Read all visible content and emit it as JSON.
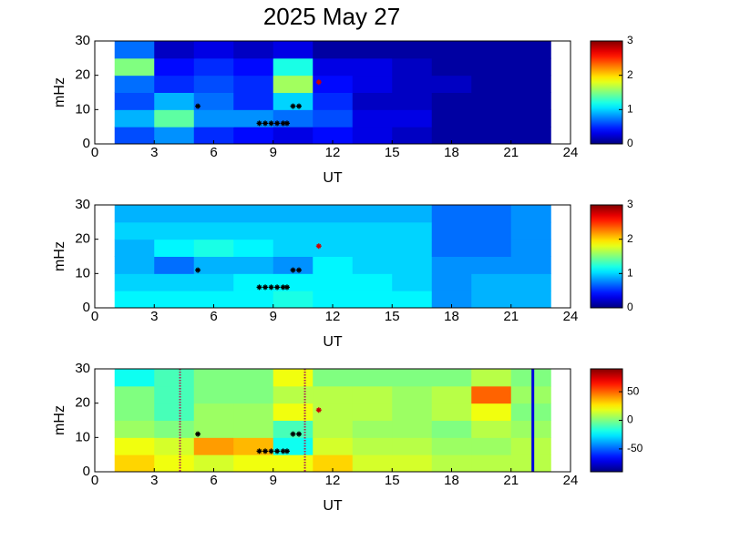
{
  "chart_data": [
    {
      "type": "heatmap",
      "title": "2025 May 27",
      "xlabel": "UT",
      "ylabel": "mHz",
      "xlim": [
        0,
        24
      ],
      "xticks": [
        0,
        3,
        6,
        9,
        12,
        15,
        18,
        21,
        24
      ],
      "ylim": [
        0,
        30
      ],
      "yticks": [
        0,
        10,
        20,
        30
      ],
      "x_bins": [
        1,
        3,
        5,
        7,
        9,
        11,
        13,
        15,
        17,
        19,
        21,
        23
      ],
      "y_bins": [
        0,
        5,
        10,
        15,
        20,
        25,
        30
      ],
      "values": [
        [
          0.6,
          0.8,
          0.5,
          0.4,
          0.3,
          0.4,
          0.3,
          0.2,
          0.1,
          0.1,
          0.1
        ],
        [
          0.9,
          1.4,
          0.8,
          0.8,
          0.7,
          0.6,
          0.3,
          0.3,
          0.1,
          0.1,
          0.1
        ],
        [
          0.6,
          0.9,
          0.7,
          0.5,
          1.0,
          0.5,
          0.2,
          0.2,
          0.1,
          0.1,
          0.1
        ],
        [
          0.7,
          0.5,
          0.6,
          0.5,
          1.6,
          0.4,
          0.3,
          0.2,
          0.2,
          0.1,
          0.1
        ],
        [
          1.5,
          0.4,
          0.5,
          0.4,
          1.2,
          0.3,
          0.3,
          0.2,
          0.1,
          0.1,
          0.1
        ],
        [
          0.7,
          0.2,
          0.3,
          0.2,
          0.3,
          0.1,
          0.1,
          0.1,
          0.1,
          0.1,
          0.1
        ]
      ],
      "clim": [
        0,
        3
      ],
      "cticks": [
        0,
        1,
        2,
        3
      ],
      "points": [
        {
          "color": "#000000",
          "x": [
            5.2,
            8.3,
            8.6,
            8.9,
            9.2,
            9.5,
            9.7,
            10.0,
            10.3
          ],
          "y": [
            11,
            6,
            6,
            6,
            6,
            6,
            6,
            11,
            11
          ]
        },
        {
          "color": "#cc0000",
          "x": [
            11.3
          ],
          "y": [
            18
          ]
        }
      ]
    },
    {
      "type": "heatmap",
      "xlabel": "UT",
      "ylabel": "mHz",
      "xlim": [
        0,
        24
      ],
      "xticks": [
        0,
        3,
        6,
        9,
        12,
        15,
        18,
        21,
        24
      ],
      "ylim": [
        0,
        30
      ],
      "yticks": [
        0,
        10,
        20,
        30
      ],
      "x_bins": [
        1,
        3,
        5,
        7,
        9,
        11,
        13,
        15,
        17,
        19,
        21,
        23
      ],
      "y_bins": [
        0,
        5,
        10,
        15,
        20,
        25,
        30
      ],
      "values": [
        [
          1.1,
          1.1,
          1.1,
          1.1,
          1.2,
          1.1,
          1.1,
          1.1,
          0.8,
          0.9,
          0.9
        ],
        [
          1.0,
          1.0,
          1.0,
          1.1,
          1.1,
          1.1,
          1.1,
          1.0,
          0.8,
          0.9,
          0.9
        ],
        [
          0.9,
          0.7,
          0.9,
          0.9,
          0.8,
          1.1,
          1.0,
          1.0,
          0.8,
          0.8,
          0.8
        ],
        [
          0.9,
          1.1,
          1.2,
          1.1,
          1.0,
          1.0,
          1.0,
          1.0,
          0.7,
          0.7,
          0.8
        ],
        [
          1.0,
          1.0,
          1.0,
          1.0,
          1.0,
          1.0,
          1.0,
          1.0,
          0.7,
          0.7,
          0.8
        ],
        [
          0.9,
          0.9,
          0.9,
          0.9,
          0.9,
          0.9,
          0.9,
          0.9,
          0.7,
          0.7,
          0.8
        ]
      ],
      "clim": [
        0,
        3
      ],
      "cticks": [
        0,
        1,
        2,
        3
      ],
      "points": [
        {
          "color": "#000000",
          "x": [
            5.2,
            8.3,
            8.6,
            8.9,
            9.2,
            9.5,
            9.7,
            10.0,
            10.3
          ],
          "y": [
            11,
            6,
            6,
            6,
            6,
            6,
            6,
            11,
            11
          ]
        },
        {
          "color": "#cc0000",
          "x": [
            11.3
          ],
          "y": [
            18
          ]
        }
      ]
    },
    {
      "type": "heatmap",
      "xlabel": "UT",
      "ylabel": "mHz",
      "xlim": [
        0,
        24
      ],
      "xticks": [
        0,
        3,
        6,
        9,
        12,
        15,
        18,
        21,
        24
      ],
      "ylim": [
        0,
        30
      ],
      "yticks": [
        0,
        10,
        20,
        30
      ],
      "x_bins": [
        1,
        3,
        5,
        7,
        9,
        11,
        13,
        15,
        17,
        19,
        21,
        23
      ],
      "y_bins": [
        0,
        5,
        10,
        15,
        20,
        25,
        30
      ],
      "values": [
        [
          30,
          20,
          15,
          20,
          20,
          30,
          15,
          15,
          10,
          10,
          10
        ],
        [
          20,
          15,
          40,
          35,
          -20,
          15,
          10,
          10,
          5,
          5,
          10
        ],
        [
          5,
          0,
          5,
          5,
          -10,
          10,
          5,
          5,
          0,
          10,
          5
        ],
        [
          0,
          -10,
          5,
          5,
          20,
          10,
          10,
          5,
          10,
          20,
          0
        ],
        [
          0,
          -10,
          0,
          0,
          10,
          10,
          10,
          5,
          10,
          50,
          5
        ],
        [
          -20,
          -10,
          0,
          0,
          20,
          0,
          0,
          0,
          0,
          10,
          0
        ]
      ],
      "clim": [
        -90,
        90
      ],
      "cticks": [
        -50,
        0,
        50
      ],
      "points": [
        {
          "color": "#000000",
          "x": [
            5.2,
            8.3,
            8.6,
            8.9,
            9.2,
            9.5,
            9.7,
            10.0,
            10.3
          ],
          "y": [
            11,
            6,
            6,
            6,
            6,
            6,
            6,
            11,
            11
          ]
        },
        {
          "color": "#cc0000",
          "x": [
            11.3
          ],
          "y": [
            18
          ]
        }
      ],
      "vlines": [
        {
          "x": 4.3,
          "style": "dotted",
          "color": "#aa2255"
        },
        {
          "x": 10.6,
          "style": "dotted",
          "color": "#aa2255"
        },
        {
          "x": 22.1,
          "style": "solid",
          "color": "#0000dd"
        }
      ]
    }
  ]
}
